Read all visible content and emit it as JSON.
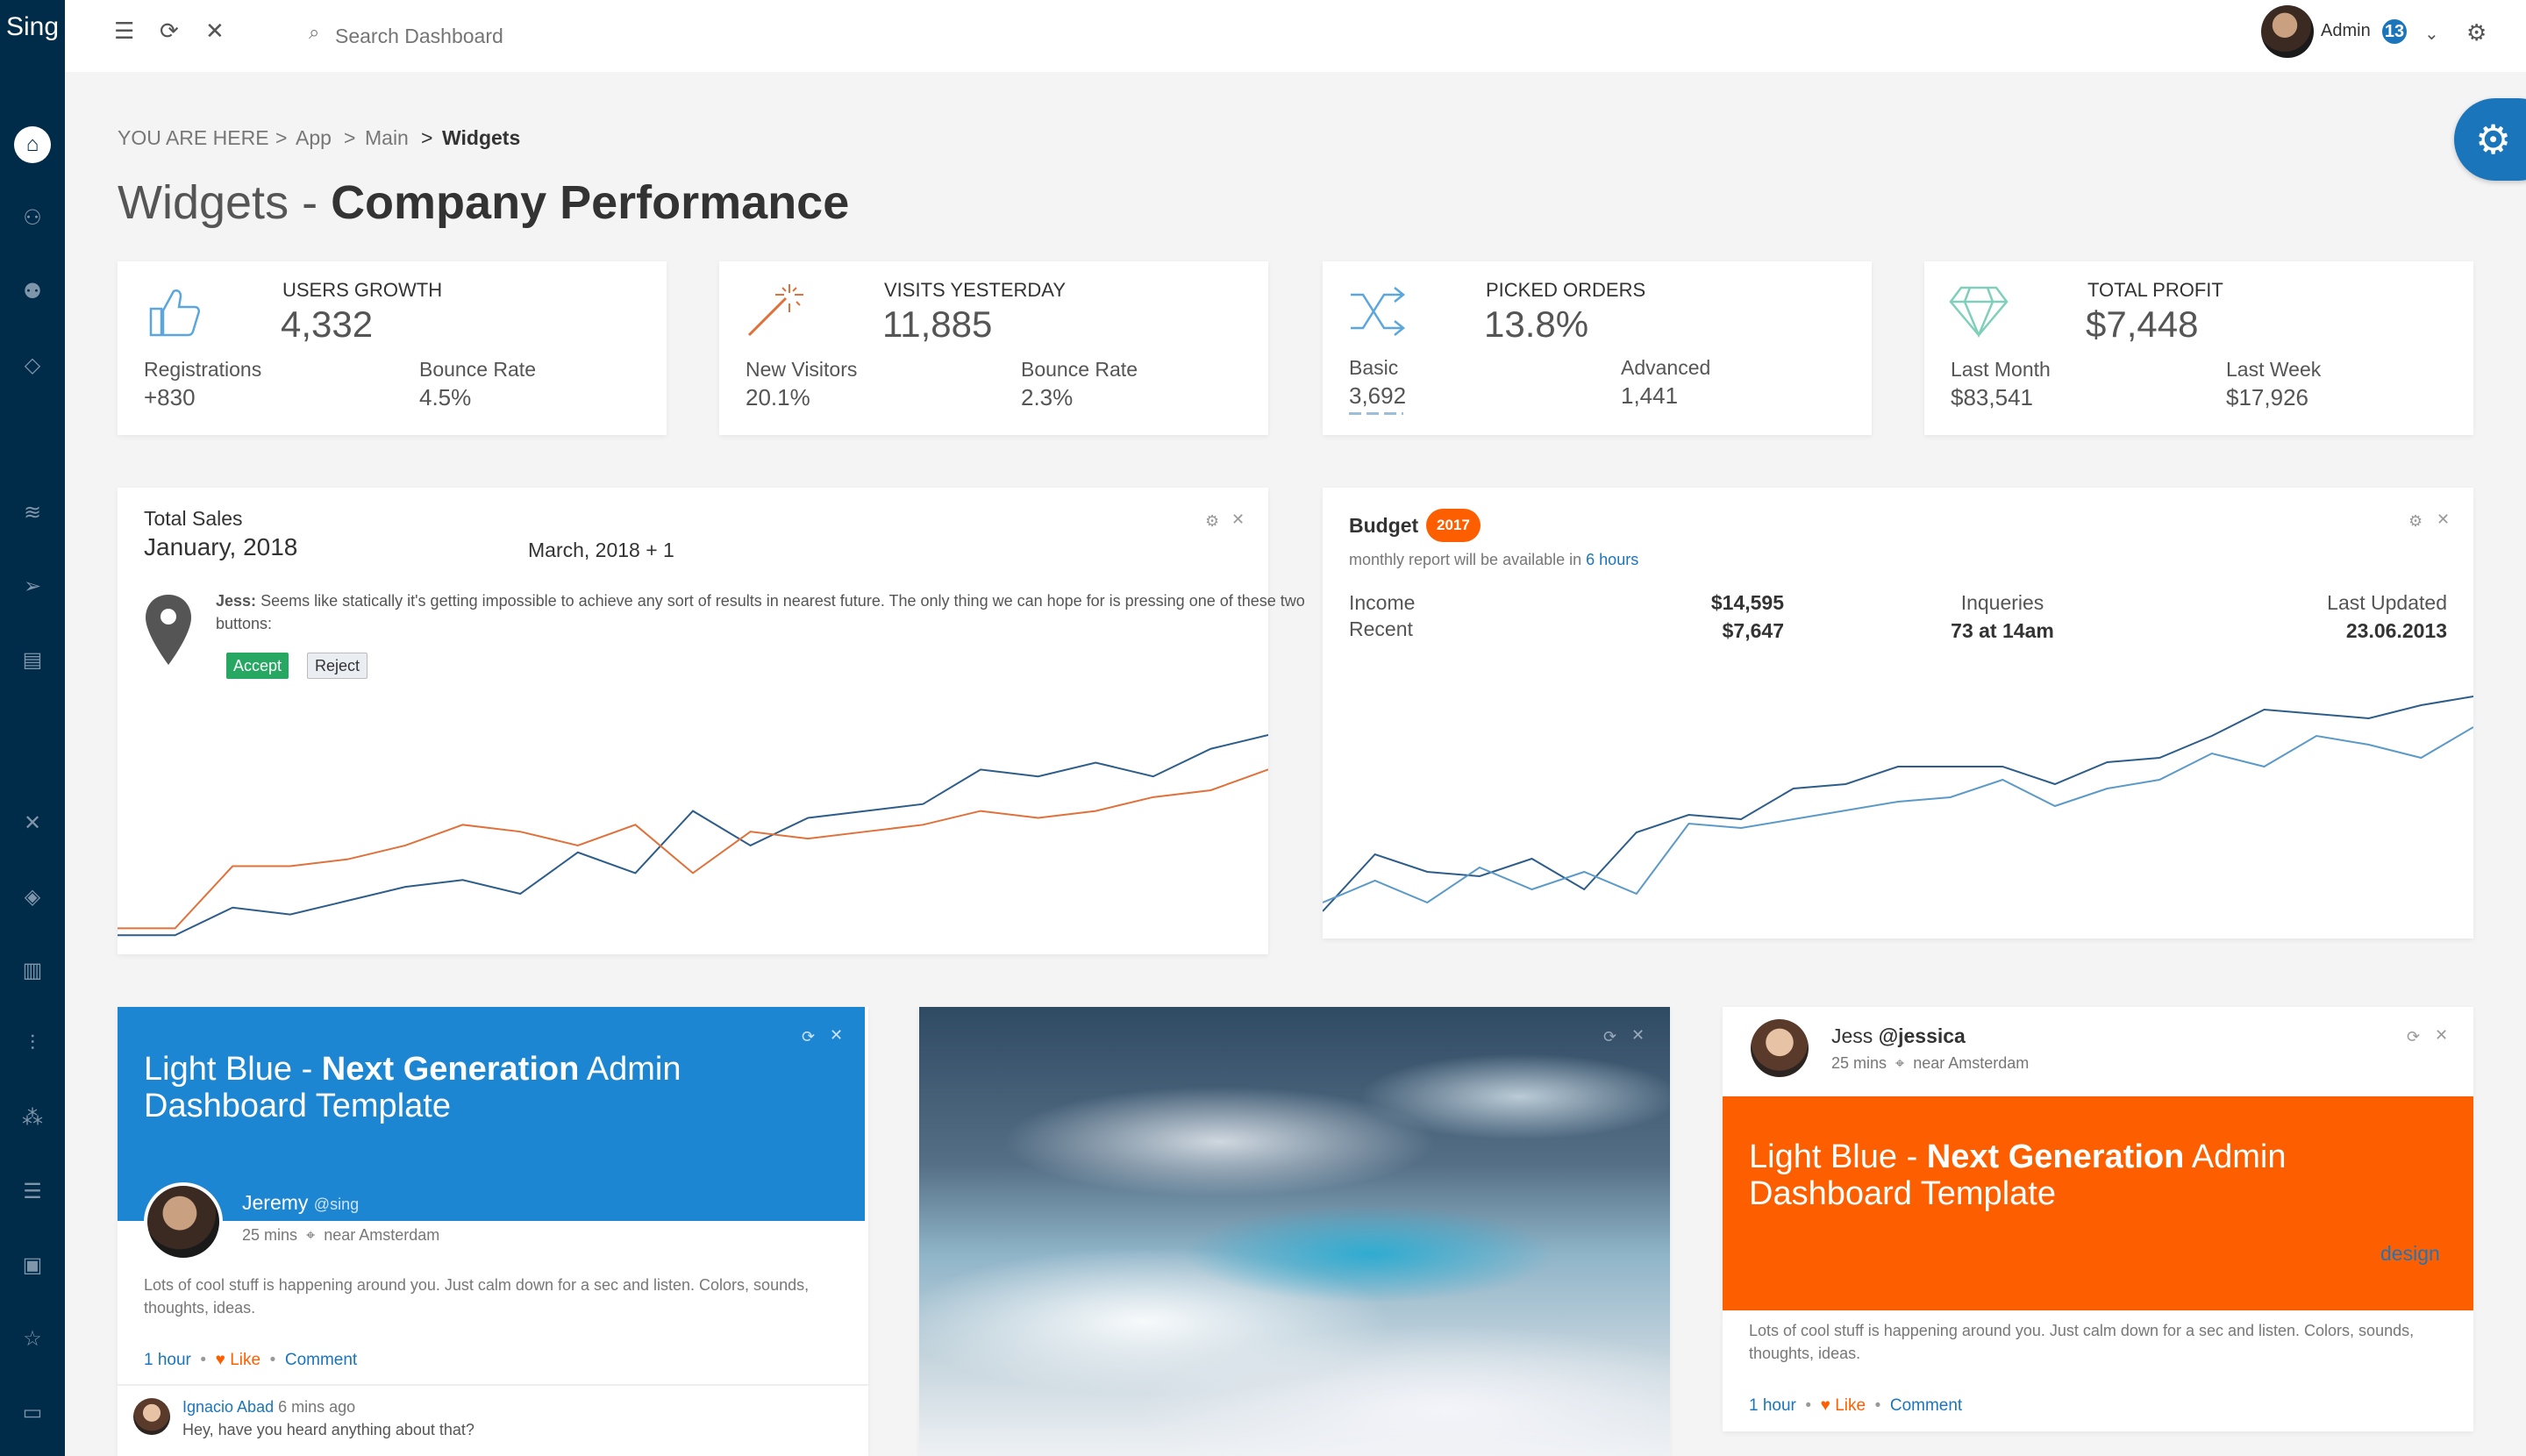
{
  "app": {
    "logo": "Sing"
  },
  "topbar": {
    "search_placeholder": "Search Dashboard",
    "user_name": "Admin",
    "notif_count": "13"
  },
  "breadcrumb": {
    "prefix": "YOU ARE HERE",
    "items": [
      "App",
      "Main",
      "Widgets"
    ],
    "sep": ">"
  },
  "page": {
    "title_light": "Widgets - ",
    "title_bold": "Company Performance"
  },
  "stats": [
    {
      "title": "USERS GROWTH",
      "value": "4,332",
      "l1": "Registrations",
      "v1": "+830",
      "l2": "Bounce Rate",
      "v2": "4.5%",
      "icon": "thumbs-up-icon"
    },
    {
      "title": "VISITS YESTERDAY",
      "value": "11,885",
      "l1": "New Visitors",
      "v1": "20.1%",
      "l2": "Bounce Rate",
      "v2": "2.3%",
      "icon": "magic-wand-icon"
    },
    {
      "title": "PICKED ORDERS",
      "value": "13.8%",
      "l1": "Basic",
      "v1": "3,692",
      "l2": "Advanced",
      "v2": "1,441",
      "icon": "shuffle-icon"
    },
    {
      "title": "TOTAL PROFIT",
      "value": "$7,448",
      "l1": "Last Month",
      "v1": "$83,541",
      "l2": "Last Week",
      "v2": "$17,926",
      "icon": "diamond-icon"
    }
  ],
  "sales": {
    "title": "Total Sales",
    "date": "January, 2018",
    "date2": "March, 2018 + 1",
    "msg_author": "Jess:",
    "msg": "Seems like statically it's getting impossible to achieve any sort of results in nearest future. The only thing we can hope for is pressing one of these two buttons:",
    "accept": "Accept",
    "reject": "Reject"
  },
  "budget": {
    "title": "Budget",
    "badge": "2017",
    "sub_pre": "monthly report will be available in",
    "sub_link": "6 hours",
    "income_lbl": "Income",
    "recent_lbl": "Recent",
    "income": "$14,595",
    "recent": "$7,647",
    "inq_lbl": "Inqueries",
    "inq": "73 at 14am",
    "upd_lbl": "Last Updated",
    "upd": "23.06.2013"
  },
  "post1": {
    "hero_light1": "Light Blue - ",
    "hero_bold": "Next Generation",
    "hero_light2": " Admin Dashboard Template",
    "name": "Jeremy",
    "handle": "@sing",
    "time": "25 mins",
    "loc": "near Amsterdam",
    "body": "Lots of cool stuff is happening around you. Just calm down for a sec and listen. Colors, sounds, thoughts, ideas.",
    "a1": "1 hour",
    "a2": "Like",
    "a3": "Comment",
    "c_name": "Ignacio Abad",
    "c_time": "6 mins ago",
    "c_text": "Hey, have you heard anything about that?"
  },
  "post2": {
    "name": "Jess",
    "handle": "@jessica",
    "time": "25 mins",
    "loc": "near Amsterdam",
    "hero_light1": "Light Blue - ",
    "hero_bold": "Next Generation",
    "hero_light2": " Admin Dashboard Template",
    "tag": "design",
    "body": "Lots of cool stuff is happening around you. Just calm down for a sec and listen. Colors, sounds, thoughts, ideas.",
    "a1": "1 hour",
    "a2": "Like",
    "a3": "Comment"
  },
  "colors": {
    "sidebar": "#002b49",
    "accent": "#1b75bb",
    "orange": "#fd5f00",
    "line_blue": "#2d5d8a",
    "line_orange": "#e0713a",
    "green": "#26a862"
  },
  "chart_data": [
    {
      "type": "line",
      "title": "Total Sales",
      "series": [
        {
          "values": [
            2,
            2,
            6,
            5,
            7,
            9,
            10,
            8,
            14,
            11,
            20,
            15,
            19,
            20,
            21,
            26,
            25,
            27,
            25,
            29,
            31
          ]
        },
        {
          "values": [
            3,
            3,
            12,
            12,
            13,
            15,
            18,
            17,
            15,
            18,
            11,
            17,
            16,
            17,
            18,
            20,
            19,
            20,
            22,
            23,
            26
          ]
        }
      ]
    },
    {
      "type": "line",
      "title": "Budget",
      "series": [
        {
          "values": [
            5,
            18,
            14,
            13,
            17,
            10,
            23,
            27,
            26,
            33,
            34,
            38,
            38,
            38,
            34,
            39,
            40,
            45,
            51,
            50,
            49,
            52,
            54
          ]
        },
        {
          "values": [
            7,
            12,
            7,
            15,
            10,
            14,
            9,
            25,
            24,
            26,
            28,
            30,
            31,
            35,
            29,
            33,
            35,
            41,
            38,
            45,
            43,
            40,
            47
          ]
        }
      ]
    }
  ]
}
